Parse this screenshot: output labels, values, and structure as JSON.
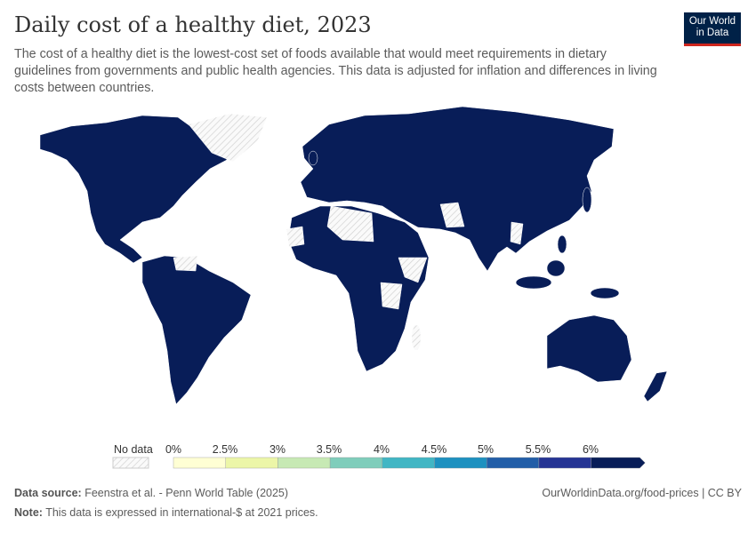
{
  "title": "Daily cost of a healthy diet, 2023",
  "subtitle": "The cost of a healthy diet is the lowest-cost set of foods available that would meet requirements in dietary guidelines from governments and public health agencies. This data is adjusted for inflation and differences in living costs between countries.",
  "logo": {
    "line1": "Our World",
    "line2": "in Data"
  },
  "colors": {
    "land_fill": "#081d58",
    "no_data": "#e8e8e8",
    "border": "#ffffff"
  },
  "legend": {
    "no_data_label": "No data",
    "ticks": [
      "0%",
      "2.5%",
      "3%",
      "3.5%",
      "4%",
      "4.5%",
      "5%",
      "5.5%",
      "6%"
    ],
    "bins": [
      "#ffffd4",
      "#ecf6a8",
      "#c7e9b4",
      "#7fcdbb",
      "#41b6c4",
      "#1d91c0",
      "#225ea8",
      "#253494",
      "#081d58"
    ]
  },
  "footer": {
    "source_label": "Data source:",
    "source": "Feenstra et al. - Penn World Table (2025)",
    "url": "OurWorldinData.org/food-prices | CC BY",
    "note_label": "Note:",
    "note": "This data is expressed in international-$ at 2021 prices."
  }
}
